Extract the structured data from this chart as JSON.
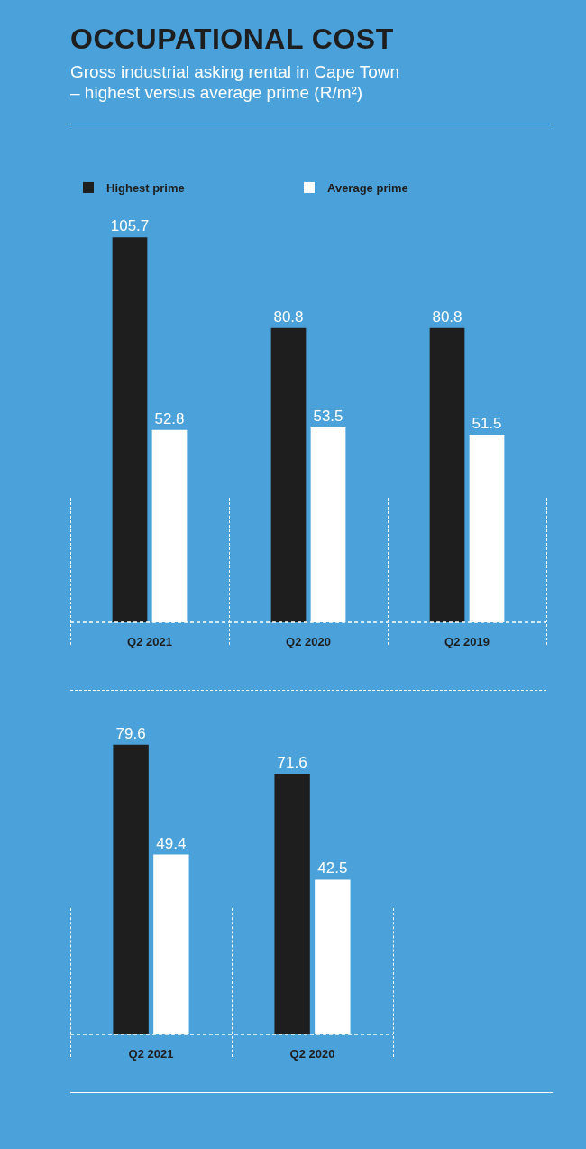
{
  "chart_data": [
    {
      "type": "bar",
      "title": "OCCUPATIONAL COST",
      "subtitle": "Gross industrial asking rental in Cape Town\n– highest versus average prime (R/m²)",
      "categories": [
        "Q2 2021",
        "Q2 2020",
        "Q2 2019"
      ],
      "series": [
        {
          "name": "Highest prime",
          "color": "#1e1e1e",
          "values": [
            105.7,
            80.8,
            80.8
          ]
        },
        {
          "name": "Average prime",
          "color": "#ffffff",
          "values": [
            52.8,
            53.5,
            51.5
          ]
        }
      ],
      "data_labels": true,
      "legend": "top left"
    },
    {
      "type": "bar",
      "categories": [
        "Q2 2021",
        "Q2 2020"
      ],
      "series": [
        {
          "color": "#1e1e1e",
          "values": [
            79.6,
            71.6
          ]
        },
        {
          "color": "#ffffff",
          "values": [
            49.4,
            42.5
          ]
        }
      ],
      "data_labels": true
    }
  ]
}
